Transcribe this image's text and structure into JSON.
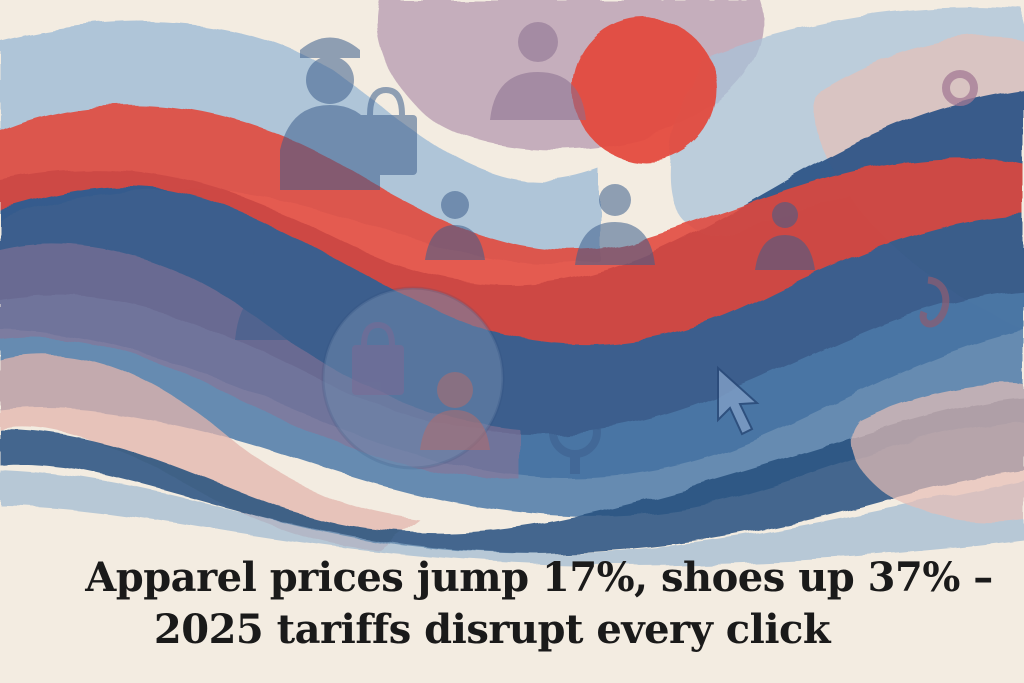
{
  "headline": {
    "line1": "Apparel prices jump 17%, shoes up 37% –",
    "line2": "2025 tariffs disrupt every click"
  },
  "palette": {
    "paper": "#f3ece1",
    "navy": "#23497a",
    "blue": "#4e7aa8",
    "light_blue": "#9fbcd6",
    "mauve": "#8a7396",
    "pink": "#e3b5ad",
    "red": "#e2473b",
    "ink": "#1a1a1a"
  },
  "icons": [
    "worker-figure-icon",
    "shopping-bag-icon",
    "person-icon",
    "sun-circle-icon",
    "ring-icon",
    "cursor-icon",
    "search-magnifier-icon",
    "hook-icon",
    "square-icon"
  ]
}
